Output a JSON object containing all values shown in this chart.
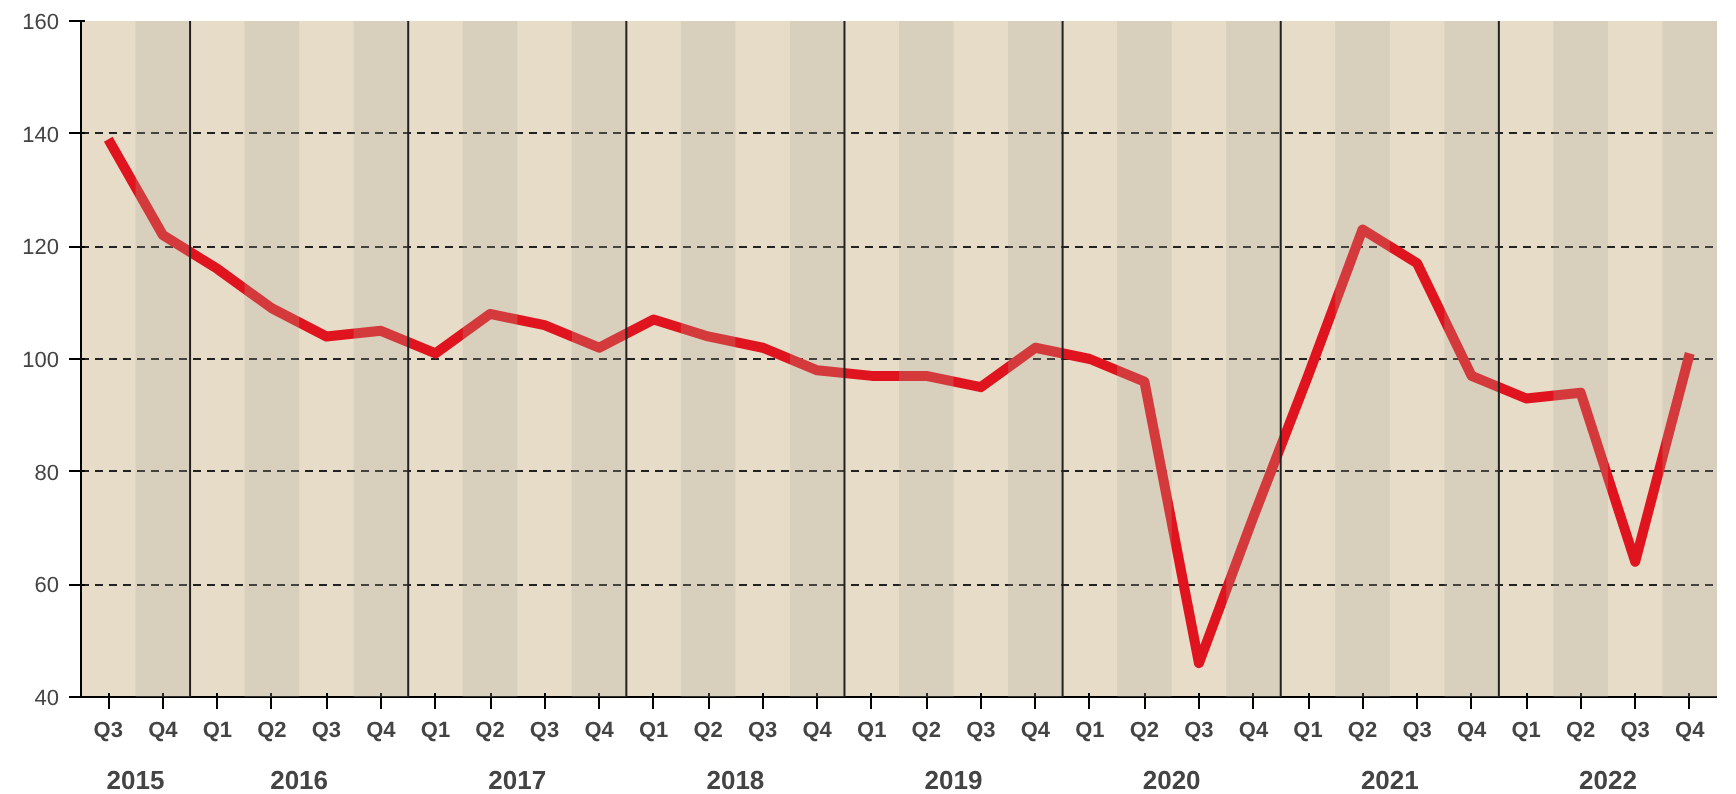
{
  "chart_data": {
    "type": "line",
    "categories": [
      "Q3",
      "Q4",
      "Q1",
      "Q2",
      "Q3",
      "Q4",
      "Q1",
      "Q2",
      "Q3",
      "Q4",
      "Q1",
      "Q2",
      "Q3",
      "Q4",
      "Q1",
      "Q2",
      "Q3",
      "Q4",
      "Q1",
      "Q2",
      "Q3",
      "Q4",
      "Q1",
      "Q2",
      "Q3",
      "Q4",
      "Q1",
      "Q2",
      "Q3",
      "Q4"
    ],
    "series": [
      {
        "color": "#e0141e",
        "values": [
          139,
          122,
          116,
          109,
          104,
          105,
          101,
          108,
          106,
          102,
          107,
          104,
          102,
          98,
          97,
          97,
          95,
          102,
          100,
          96,
          46,
          72,
          97,
          123,
          117,
          97,
          93,
          94,
          64,
          101
        ]
      }
    ],
    "ylim": [
      40,
      160
    ],
    "yticks": [
      40,
      60,
      80,
      100,
      120,
      140,
      160
    ],
    "annotations": [
      "2015",
      "2016",
      "2017",
      "2018",
      "2019",
      "2020",
      "2021",
      "2022"
    ],
    "grid": "y",
    "line_style": "solid",
    "marker": "none"
  }
}
